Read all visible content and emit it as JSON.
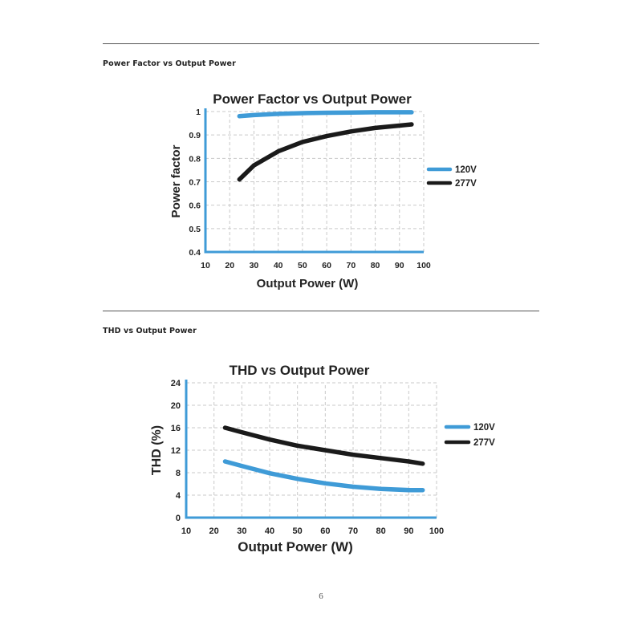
{
  "page": {
    "page_number": "6",
    "sections": [
      {
        "heading": "Power Factor vs Output Power"
      },
      {
        "heading": "THD vs Output Power"
      }
    ]
  },
  "colors": {
    "series_120v": "#3f9bd7",
    "series_277v": "#1a1a1a",
    "axis": "#3f9bd7",
    "grid": "#c9c9c9"
  },
  "chart_data": [
    {
      "type": "line",
      "title": "Power Factor vs Output Power",
      "xlabel": "Output Power (W)",
      "ylabel": "Power factor",
      "xlim": [
        10,
        100
      ],
      "ylim": [
        0.4,
        1
      ],
      "xticks": [
        "10",
        "20",
        "30",
        "40",
        "50",
        "60",
        "70",
        "80",
        "90",
        "100"
      ],
      "yticks": [
        "0.4",
        "0.5",
        "0.6",
        "0.7",
        "0.8",
        "0.9",
        "1"
      ],
      "grid": true,
      "legend_position": "right",
      "series": [
        {
          "name": "120V",
          "color": "#3f9bd7",
          "x": [
            24,
            30,
            40,
            50,
            60,
            70,
            80,
            90,
            95
          ],
          "y": [
            0.98,
            0.985,
            0.99,
            0.993,
            0.995,
            0.996,
            0.997,
            0.997,
            0.997
          ]
        },
        {
          "name": "277V",
          "color": "#1a1a1a",
          "x": [
            24,
            30,
            40,
            50,
            60,
            70,
            80,
            90,
            95
          ],
          "y": [
            0.71,
            0.77,
            0.83,
            0.87,
            0.895,
            0.915,
            0.93,
            0.94,
            0.945
          ]
        }
      ]
    },
    {
      "type": "line",
      "title": "THD vs Output Power",
      "xlabel": "Output Power (W)",
      "ylabel": "THD (%)",
      "xlim": [
        10,
        100
      ],
      "ylim": [
        0,
        24
      ],
      "xticks": [
        "10",
        "20",
        "30",
        "40",
        "50",
        "60",
        "70",
        "80",
        "90",
        "100"
      ],
      "yticks": [
        "0",
        "4",
        "8",
        "12",
        "16",
        "20",
        "24"
      ],
      "grid": true,
      "legend_position": "right",
      "series": [
        {
          "name": "120V",
          "color": "#3f9bd7",
          "x": [
            24,
            30,
            40,
            50,
            60,
            70,
            80,
            90,
            95
          ],
          "y": [
            10,
            9.2,
            7.9,
            6.9,
            6.1,
            5.5,
            5.1,
            4.9,
            4.9
          ]
        },
        {
          "name": "277V",
          "color": "#1a1a1a",
          "x": [
            24,
            30,
            40,
            50,
            60,
            70,
            80,
            90,
            95
          ],
          "y": [
            16,
            15.2,
            13.9,
            12.8,
            12,
            11.2,
            10.6,
            10,
            9.6
          ]
        }
      ]
    }
  ]
}
